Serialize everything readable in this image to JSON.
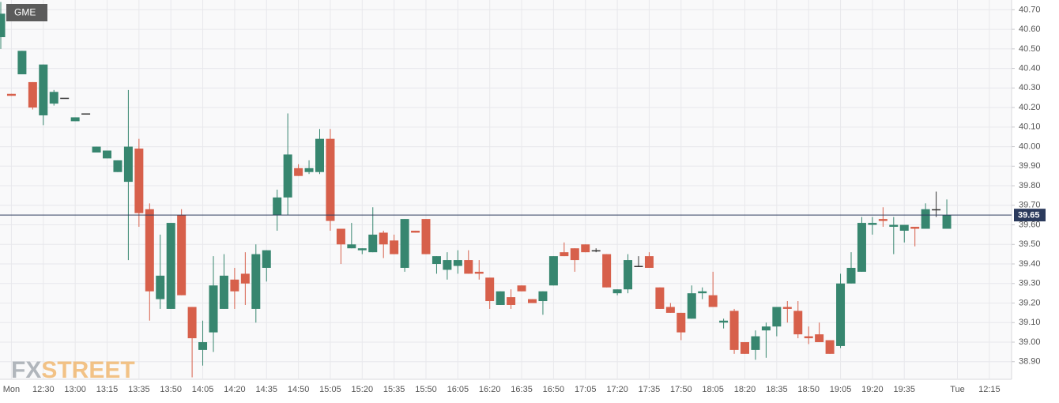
{
  "chart_data": {
    "type": "candlestick",
    "title": "GME",
    "watermark": [
      "FX",
      "STREET"
    ],
    "categories": [
      null,
      "Mon",
      null,
      null,
      "12:30",
      null,
      null,
      "13:00",
      null,
      null,
      "13:15",
      null,
      null,
      "13:35",
      null,
      null,
      "13:50",
      null,
      null,
      "14:05",
      null,
      null,
      "14:20",
      null,
      null,
      "14:35",
      null,
      null,
      "14:50",
      null,
      null,
      "15:05",
      null,
      null,
      "15:20",
      null,
      null,
      "15:35",
      null,
      null,
      "15:50",
      null,
      null,
      "16:05",
      null,
      null,
      "16:20",
      null,
      null,
      "16:35",
      null,
      null,
      "16:50",
      null,
      null,
      "17:05",
      null,
      null,
      "17:20",
      null,
      null,
      "17:35",
      null,
      null,
      "17:50",
      null,
      null,
      "18:05",
      null,
      null,
      "18:20",
      null,
      null,
      "18:35",
      null,
      null,
      "18:50",
      null,
      null,
      "19:05",
      null,
      null,
      "19:20",
      null,
      null,
      "19:35",
      null,
      null,
      null,
      null,
      "Tue",
      null,
      null,
      "12:15"
    ],
    "open": [
      40.56,
      40.27,
      40.37,
      40.33,
      40.16,
      40.22,
      40.25,
      40.13,
      40.17,
      39.97,
      39.94,
      39.87,
      39.82,
      39.99,
      39.68,
      39.22,
      39.17,
      39.65,
      39.18,
      38.96,
      39.05,
      39.17,
      39.32,
      39.35,
      39.17,
      39.38,
      39.65,
      39.74,
      39.89,
      39.87,
      39.87,
      40.04,
      39.58,
      39.48,
      39.47,
      39.46,
      39.56,
      39.52,
      39.38,
      39.57,
      39.63,
      39.4,
      39.37,
      39.39,
      39.42,
      39.36,
      39.33,
      39.19,
      39.23,
      39.29,
      39.22,
      39.21,
      39.29,
      39.46,
      39.48,
      39.5,
      39.47,
      39.45,
      39.25,
      39.27,
      39.39,
      39.44,
      39.28,
      39.18,
      39.15,
      39.12,
      39.25,
      39.24,
      39.1,
      39.16,
      39.0,
      38.96,
      39.06,
      39.08,
      39.18,
      39.16,
      39.03,
      39.04,
      39.01,
      38.98,
      39.3,
      39.36,
      39.6,
      39.63,
      39.59,
      39.57,
      39.59,
      39.58,
      39.68,
      39.58,
      null,
      null,
      null,
      null
    ],
    "high": [
      40.74,
      40.27,
      40.49,
      40.33,
      40.42,
      40.29,
      40.25,
      40.15,
      40.17,
      40.0,
      39.98,
      39.93,
      40.29,
      40.04,
      39.71,
      39.55,
      39.61,
      39.68,
      39.18,
      39.11,
      39.44,
      39.45,
      39.38,
      39.46,
      39.5,
      39.47,
      39.78,
      40.17,
      39.91,
      39.93,
      40.09,
      40.09,
      39.58,
      39.61,
      39.48,
      39.69,
      39.57,
      39.55,
      39.63,
      39.57,
      39.63,
      39.44,
      39.46,
      39.47,
      39.47,
      39.42,
      39.33,
      39.26,
      39.27,
      39.29,
      39.22,
      39.26,
      39.44,
      39.51,
      39.48,
      39.5,
      39.48,
      39.45,
      39.27,
      39.45,
      39.44,
      39.46,
      39.28,
      39.2,
      39.15,
      39.29,
      39.28,
      39.36,
      39.12,
      39.17,
      39.0,
      39.06,
      39.1,
      39.18,
      39.21,
      39.21,
      39.08,
      39.1,
      39.01,
      39.35,
      39.46,
      39.64,
      39.64,
      39.69,
      39.64,
      39.6,
      39.59,
      39.71,
      39.77,
      39.73,
      null,
      null,
      null,
      null
    ],
    "low": [
      40.5,
      40.26,
      40.37,
      40.19,
      40.11,
      40.21,
      40.25,
      40.13,
      40.17,
      39.97,
      39.94,
      39.87,
      39.42,
      39.59,
      39.11,
      39.17,
      39.17,
      39.24,
      38.82,
      38.88,
      38.95,
      39.17,
      39.17,
      39.19,
      39.1,
      39.31,
      39.57,
      39.65,
      39.85,
      39.86,
      39.86,
      39.57,
      39.4,
      39.48,
      39.45,
      39.46,
      39.43,
      39.45,
      39.36,
      39.56,
      39.45,
      39.35,
      39.32,
      39.35,
      39.35,
      39.32,
      39.17,
      39.19,
      39.17,
      39.26,
      39.2,
      39.14,
      39.29,
      39.44,
      39.36,
      39.46,
      39.46,
      39.28,
      39.24,
      39.25,
      39.39,
      39.38,
      39.17,
      39.15,
      39.01,
      39.12,
      39.22,
      39.18,
      39.07,
      38.94,
      38.94,
      38.91,
      38.92,
      39.03,
      39.1,
      39.02,
      38.99,
      39.0,
      38.94,
      38.97,
      39.3,
      39.36,
      39.55,
      39.59,
      39.45,
      39.51,
      39.49,
      39.58,
      39.64,
      39.58,
      null,
      null,
      null,
      null
    ],
    "close": [
      40.68,
      40.26,
      40.49,
      40.2,
      40.42,
      40.28,
      40.25,
      40.15,
      40.17,
      40.0,
      39.98,
      39.93,
      40.0,
      39.66,
      39.26,
      39.34,
      39.61,
      39.24,
      39.02,
      39.0,
      39.29,
      39.34,
      39.26,
      39.3,
      39.45,
      39.47,
      39.74,
      39.96,
      39.85,
      39.89,
      40.04,
      39.62,
      39.5,
      39.5,
      39.48,
      39.55,
      39.5,
      39.45,
      39.63,
      39.56,
      39.45,
      39.44,
      39.42,
      39.42,
      39.35,
      39.35,
      39.21,
      39.26,
      39.19,
      39.26,
      39.2,
      39.26,
      39.44,
      39.44,
      39.42,
      39.46,
      39.47,
      39.28,
      39.27,
      39.42,
      39.39,
      39.38,
      39.17,
      39.15,
      39.05,
      39.25,
      39.26,
      39.18,
      39.11,
      38.96,
      38.94,
      39.03,
      39.08,
      39.18,
      39.17,
      39.04,
      39.02,
      39.0,
      38.94,
      39.3,
      39.38,
      39.61,
      39.61,
      39.62,
      39.6,
      39.6,
      39.58,
      39.68,
      39.68,
      39.65,
      null,
      null,
      null,
      null
    ],
    "colors": {
      "up": "#37866f",
      "down": "#d7604b",
      "flat": "#333333"
    },
    "last_price": 39.65,
    "last_price_color": "#2b3a5c",
    "ylim": [
      38.81,
      40.75
    ],
    "yticks": [
      {
        "value": 38.9,
        "label": "38.90"
      },
      {
        "value": 39.0,
        "label": "39.00"
      },
      {
        "value": 39.1,
        "label": "39.10"
      },
      {
        "value": 39.2,
        "label": "39.20"
      },
      {
        "value": 39.3,
        "label": "39.30"
      },
      {
        "value": 39.4,
        "label": "39.40"
      },
      {
        "value": 39.5,
        "label": "39.50"
      },
      {
        "value": 39.6,
        "label": "39.60"
      },
      {
        "value": 39.7,
        "label": "39.70"
      },
      {
        "value": 39.8,
        "label": "39.80"
      },
      {
        "value": 39.9,
        "label": "39.90"
      },
      {
        "value": 40.0,
        "label": "40.00"
      },
      {
        "value": 40.1,
        "label": "40.10"
      },
      {
        "value": 40.2,
        "label": "40.20"
      },
      {
        "value": 40.3,
        "label": "40.30"
      },
      {
        "value": 40.4,
        "label": "40.40"
      },
      {
        "value": 40.5,
        "label": "40.50"
      },
      {
        "value": 40.6,
        "label": "40.60"
      },
      {
        "value": 40.7,
        "label": "40.70"
      }
    ],
    "grid": true
  }
}
